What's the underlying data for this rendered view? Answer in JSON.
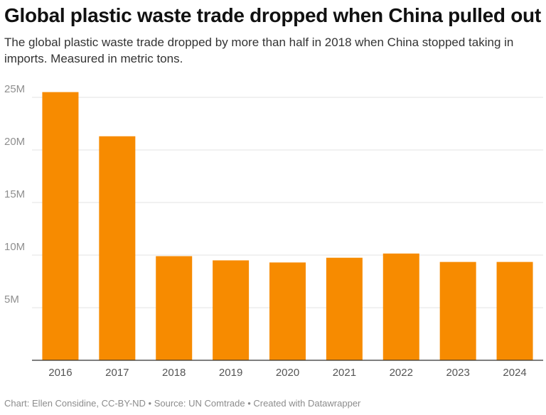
{
  "header": {
    "title": "Global plastic waste trade dropped when China pulled out",
    "subtitle": "The global plastic waste trade dropped by more than half in 2018 when China stopped taking in imports. Measured in metric tons."
  },
  "footer": {
    "text": "Chart: Ellen Considine, CC-BY-ND • Source: UN Comtrade • Created with Datawrapper"
  },
  "chart_data": {
    "type": "bar",
    "categories": [
      "2016",
      "2017",
      "2018",
      "2019",
      "2020",
      "2021",
      "2022",
      "2023",
      "2024"
    ],
    "values": [
      25500000,
      21300000,
      9900000,
      9500000,
      9300000,
      9750000,
      10150000,
      9350000,
      9350000
    ],
    "ylim": [
      0,
      25000000
    ],
    "yticks": [
      5000000,
      10000000,
      15000000,
      20000000,
      25000000
    ],
    "ytick_labels": [
      "5M",
      "10M",
      "15M",
      "20M",
      "25M"
    ],
    "grid": true,
    "colors": {
      "bar": "#f78b00",
      "grid": "#e3e3e3",
      "axis": "#333333"
    }
  }
}
